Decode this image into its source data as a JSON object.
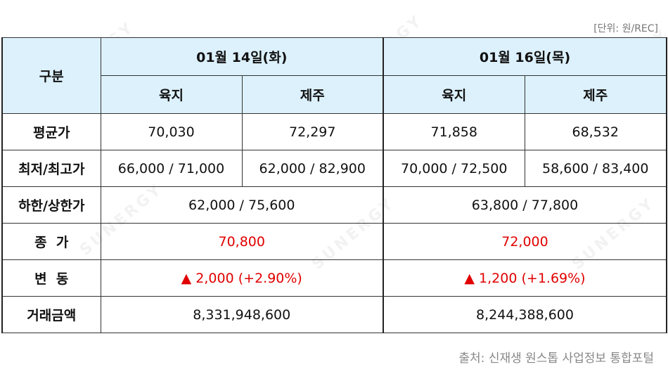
{
  "unit_label": "[단위: 원/REC]",
  "source_label": "출처: 신재생 원스톱 사업정보 통합포털",
  "watermark": "SUNERGY",
  "table": {
    "corner_label": "구분",
    "dates": [
      "01월 14일(화)",
      "01월 16일(목)"
    ],
    "regions": [
      "육지",
      "제주",
      "육지",
      "제주"
    ],
    "rows": {
      "avg": {
        "label": "평균가",
        "values": [
          "70,030",
          "72,297",
          "71,858",
          "68,532"
        ]
      },
      "minmax": {
        "label": "최저/최고가",
        "values": [
          "66,000 / 71,000",
          "62,000 / 82,900",
          "70,000 / 72,500",
          "58,600 / 83,400"
        ]
      },
      "limit": {
        "label": "하한/상한가",
        "values": [
          "62,000 / 75,600",
          "63,800 / 77,800"
        ]
      },
      "close": {
        "label": "종  가",
        "values": [
          "70,800",
          "72,000"
        ]
      },
      "change": {
        "label": "변  동",
        "values": [
          "▲ 2,000 (+2.90%)",
          "▲ 1,200 (+1.69%)"
        ]
      },
      "volume": {
        "label": "거래금액",
        "values": [
          "8,331,948,600",
          "8,244,388,600"
        ]
      }
    }
  },
  "colors": {
    "header_bg": "#dcf1fc",
    "highlight": "#e00000"
  }
}
